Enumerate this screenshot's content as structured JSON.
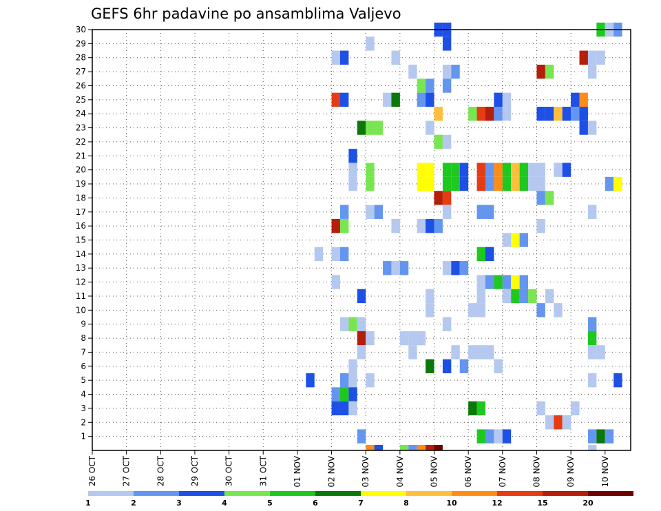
{
  "chart_data": {
    "type": "heatmap",
    "title": "GEFS 6hr padavine po ansamblima Valjevo",
    "x_tick_labels": [
      "26 OCT",
      "27 OCT",
      "28 OCT",
      "29 OCT",
      "30 OCT",
      "31 OCT",
      "01 NOV",
      "02 NOV",
      "03 NOV",
      "04 NOV",
      "05 NOV",
      "06 NOV",
      "07 NOV",
      "08 NOV",
      "09 NOV",
      "10 NOV"
    ],
    "y_tick_labels": [
      "1",
      "2",
      "3",
      "4",
      "5",
      "6",
      "7",
      "8",
      "9",
      "10",
      "11",
      "12",
      "13",
      "14",
      "15",
      "16",
      "17",
      "18",
      "19",
      "20",
      "21",
      "22",
      "23",
      "24",
      "25",
      "26",
      "27",
      "28",
      "29",
      "30"
    ],
    "x_range": [
      0,
      62
    ],
    "y_range": [
      0,
      30
    ],
    "grid": true,
    "legend": {
      "placement": "bottom",
      "thresholds": [
        "1",
        "2",
        "3",
        "4",
        "5",
        "6",
        "7",
        "8",
        "10",
        "12",
        "15",
        "20"
      ],
      "colors": [
        "#b4c8f0",
        "#6496f0",
        "#1e50e6",
        "#78e650",
        "#1ec81e",
        "#0a780a",
        "#ffff00",
        "#ffbe3c",
        "#ff8c14",
        "#e63c14",
        "#b41e0a",
        "#6e0000"
      ]
    },
    "cells": [
      [
        40,
        30,
        3
      ],
      [
        41,
        30,
        3
      ],
      [
        59,
        30,
        5
      ],
      [
        60,
        30,
        1
      ],
      [
        61,
        30,
        2
      ],
      [
        32,
        29,
        1
      ],
      [
        41,
        29,
        3
      ],
      [
        28,
        28,
        1
      ],
      [
        29,
        28,
        3
      ],
      [
        35,
        28,
        1
      ],
      [
        57,
        28,
        11
      ],
      [
        58,
        28,
        1
      ],
      [
        59,
        28,
        1
      ],
      [
        37,
        27,
        1
      ],
      [
        41,
        27,
        1
      ],
      [
        42,
        27,
        2
      ],
      [
        52,
        27,
        11
      ],
      [
        53,
        27,
        4
      ],
      [
        58,
        27,
        1
      ],
      [
        38,
        26,
        4
      ],
      [
        39,
        26,
        2
      ],
      [
        41,
        26,
        2
      ],
      [
        28,
        25,
        10
      ],
      [
        29,
        25,
        3
      ],
      [
        34,
        25,
        1
      ],
      [
        35,
        25,
        6
      ],
      [
        38,
        25,
        2
      ],
      [
        39,
        25,
        3
      ],
      [
        47,
        25,
        3
      ],
      [
        48,
        25,
        1
      ],
      [
        56,
        25,
        3
      ],
      [
        57,
        25,
        9
      ],
      [
        40,
        24,
        8
      ],
      [
        44,
        24,
        4
      ],
      [
        45,
        24,
        10
      ],
      [
        46,
        24,
        11
      ],
      [
        47,
        24,
        2
      ],
      [
        48,
        24,
        1
      ],
      [
        52,
        24,
        3
      ],
      [
        53,
        24,
        3
      ],
      [
        54,
        24,
        8
      ],
      [
        55,
        24,
        3
      ],
      [
        56,
        24,
        2
      ],
      [
        57,
        24,
        3
      ],
      [
        31,
        23,
        6
      ],
      [
        32,
        23,
        4
      ],
      [
        33,
        23,
        4
      ],
      [
        39,
        23,
        1
      ],
      [
        57,
        23,
        3
      ],
      [
        58,
        23,
        1
      ],
      [
        40,
        22,
        4
      ],
      [
        41,
        22,
        1
      ],
      [
        30,
        21,
        3
      ],
      [
        30,
        20,
        1
      ],
      [
        32,
        20,
        4
      ],
      [
        38,
        20,
        7
      ],
      [
        39,
        20,
        7
      ],
      [
        41,
        20,
        5
      ],
      [
        42,
        20,
        5
      ],
      [
        43,
        20,
        3
      ],
      [
        45,
        20,
        10
      ],
      [
        46,
        20,
        2
      ],
      [
        47,
        20,
        9
      ],
      [
        48,
        20,
        5
      ],
      [
        49,
        20,
        8
      ],
      [
        50,
        20,
        5
      ],
      [
        51,
        20,
        1
      ],
      [
        52,
        20,
        1
      ],
      [
        54,
        20,
        1
      ],
      [
        55,
        20,
        3
      ],
      [
        30,
        19,
        1
      ],
      [
        32,
        19,
        4
      ],
      [
        38,
        19,
        7
      ],
      [
        39,
        19,
        7
      ],
      [
        41,
        19,
        5
      ],
      [
        42,
        19,
        5
      ],
      [
        43,
        19,
        3
      ],
      [
        45,
        19,
        10
      ],
      [
        46,
        19,
        2
      ],
      [
        47,
        19,
        9
      ],
      [
        48,
        19,
        5
      ],
      [
        49,
        19,
        8
      ],
      [
        50,
        19,
        5
      ],
      [
        51,
        19,
        1
      ],
      [
        52,
        19,
        1
      ],
      [
        60,
        19,
        2
      ],
      [
        61,
        19,
        7
      ],
      [
        40,
        18,
        11
      ],
      [
        41,
        18,
        10
      ],
      [
        52,
        18,
        2
      ],
      [
        53,
        18,
        4
      ],
      [
        29,
        17,
        2
      ],
      [
        32,
        17,
        1
      ],
      [
        33,
        17,
        2
      ],
      [
        41,
        17,
        1
      ],
      [
        45,
        17,
        2
      ],
      [
        46,
        17,
        2
      ],
      [
        58,
        17,
        1
      ],
      [
        28,
        16,
        11
      ],
      [
        29,
        16,
        4
      ],
      [
        35,
        16,
        1
      ],
      [
        38,
        16,
        1
      ],
      [
        39,
        16,
        3
      ],
      [
        40,
        16,
        2
      ],
      [
        52,
        16,
        1
      ],
      [
        48,
        15,
        1
      ],
      [
        49,
        15,
        7
      ],
      [
        50,
        15,
        2
      ],
      [
        26,
        14,
        1
      ],
      [
        28,
        14,
        1
      ],
      [
        29,
        14,
        2
      ],
      [
        45,
        14,
        5
      ],
      [
        46,
        14,
        3
      ],
      [
        34,
        13,
        2
      ],
      [
        35,
        13,
        1
      ],
      [
        36,
        13,
        2
      ],
      [
        41,
        13,
        1
      ],
      [
        42,
        13,
        3
      ],
      [
        43,
        13,
        2
      ],
      [
        28,
        12,
        1
      ],
      [
        45,
        12,
        1
      ],
      [
        46,
        12,
        2
      ],
      [
        47,
        12,
        5
      ],
      [
        48,
        12,
        2
      ],
      [
        49,
        12,
        7
      ],
      [
        50,
        12,
        2
      ],
      [
        31,
        11,
        3
      ],
      [
        39,
        11,
        1
      ],
      [
        45,
        11,
        1
      ],
      [
        48,
        11,
        1
      ],
      [
        49,
        11,
        5
      ],
      [
        50,
        11,
        2
      ],
      [
        51,
        11,
        4
      ],
      [
        53,
        11,
        1
      ],
      [
        39,
        10,
        1
      ],
      [
        44,
        10,
        1
      ],
      [
        45,
        10,
        1
      ],
      [
        52,
        10,
        2
      ],
      [
        54,
        10,
        1
      ],
      [
        29,
        9,
        1
      ],
      [
        30,
        9,
        4
      ],
      [
        31,
        9,
        1
      ],
      [
        41,
        9,
        1
      ],
      [
        58,
        9,
        2
      ],
      [
        31,
        8,
        11
      ],
      [
        32,
        8,
        1
      ],
      [
        36,
        8,
        1
      ],
      [
        37,
        8,
        1
      ],
      [
        38,
        8,
        1
      ],
      [
        58,
        8,
        5
      ],
      [
        31,
        7,
        1
      ],
      [
        37,
        7,
        1
      ],
      [
        42,
        7,
        1
      ],
      [
        44,
        7,
        1
      ],
      [
        45,
        7,
        1
      ],
      [
        46,
        7,
        1
      ],
      [
        58,
        7,
        1
      ],
      [
        59,
        7,
        1
      ],
      [
        30,
        6,
        1
      ],
      [
        39,
        6,
        6
      ],
      [
        41,
        6,
        3
      ],
      [
        43,
        6,
        2
      ],
      [
        47,
        6,
        1
      ],
      [
        25,
        5,
        3
      ],
      [
        29,
        5,
        2
      ],
      [
        30,
        5,
        1
      ],
      [
        32,
        5,
        1
      ],
      [
        58,
        5,
        1
      ],
      [
        61,
        5,
        3
      ],
      [
        28,
        4,
        2
      ],
      [
        29,
        4,
        5
      ],
      [
        30,
        4,
        3
      ],
      [
        28,
        3,
        3
      ],
      [
        29,
        3,
        3
      ],
      [
        30,
        3,
        1
      ],
      [
        44,
        3,
        6
      ],
      [
        45,
        3,
        5
      ],
      [
        52,
        3,
        1
      ],
      [
        56,
        3,
        1
      ],
      [
        53,
        2,
        1
      ],
      [
        54,
        2,
        10
      ],
      [
        55,
        2,
        1
      ],
      [
        31,
        1,
        2
      ],
      [
        45,
        1,
        5
      ],
      [
        46,
        1,
        2
      ],
      [
        47,
        1,
        1
      ],
      [
        48,
        1,
        3
      ],
      [
        58,
        1,
        2
      ],
      [
        59,
        1,
        6
      ],
      [
        60,
        1,
        2
      ],
      [
        32,
        0,
        9
      ],
      [
        33,
        0,
        3
      ],
      [
        36,
        0,
        4
      ],
      [
        37,
        0,
        2
      ],
      [
        38,
        0,
        9
      ],
      [
        39,
        0,
        11
      ],
      [
        40,
        0,
        12
      ],
      [
        58,
        0,
        1
      ]
    ]
  }
}
